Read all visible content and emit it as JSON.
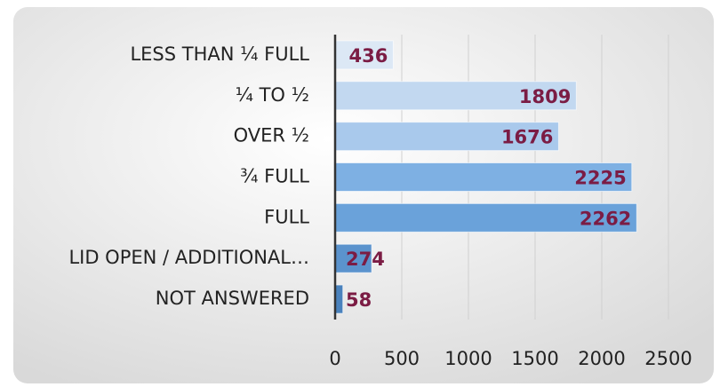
{
  "chart_data": {
    "type": "barh",
    "categories": [
      "LESS THAN ¼ FULL",
      "¼ TO ½",
      "OVER ½",
      "¾ FULL",
      "FULL",
      "LID OPEN / ADDITIONAL…",
      "NOT ANSWERED"
    ],
    "values": [
      436,
      1809,
      1676,
      2225,
      2262,
      274,
      58
    ],
    "colors": [
      "#dce8f5",
      "#c2d8f0",
      "#a9c9ec",
      "#7eb0e3",
      "#6aa2da",
      "#5b93cd",
      "#4a82bd"
    ],
    "label_color": "#7b1c44",
    "xlim": [
      0,
      2500
    ],
    "xticks": [
      0,
      500,
      1000,
      1500,
      2000,
      2500
    ],
    "grid": true
  }
}
